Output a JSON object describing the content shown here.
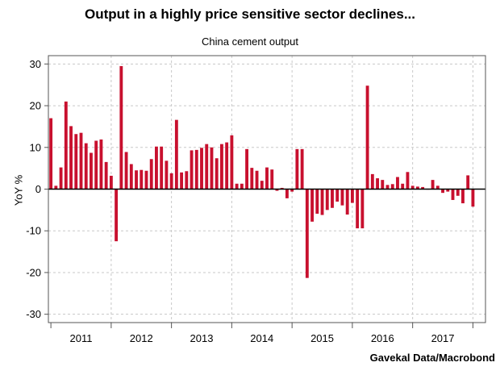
{
  "chart_data": {
    "type": "bar",
    "title": "Output in a highly price sensitive sector declines...",
    "subtitle": "China cement output",
    "ylabel": "YoY %",
    "source": "Gavekal Data/Macrobond",
    "ylim": [
      -32,
      32
    ],
    "yticks": [
      30,
      20,
      10,
      0,
      -10,
      -20,
      -30
    ],
    "grid": true,
    "bar_color": "#c8102e",
    "years": [
      "2011",
      "2012",
      "2013",
      "2014",
      "2015",
      "2016",
      "2017"
    ],
    "x_start": "2011-01",
    "values": [
      17.0,
      0.8,
      5.2,
      21.0,
      15.1,
      13.2,
      13.5,
      11.0,
      8.7,
      11.6,
      11.9,
      6.5,
      3.2,
      -12.5,
      29.5,
      8.9,
      6.0,
      4.5,
      4.6,
      4.4,
      7.2,
      10.2,
      10.2,
      6.8,
      3.8,
      16.6,
      4.0,
      4.3,
      9.3,
      9.4,
      9.9,
      10.8,
      10.0,
      7.4,
      10.8,
      11.2,
      12.9,
      1.3,
      1.3,
      9.6,
      5.1,
      4.4,
      2.0,
      5.2,
      4.7,
      -0.4,
      0.3,
      -2.2,
      -0.6,
      9.6,
      9.6,
      -21.3,
      -7.8,
      -5.9,
      -6.2,
      -5.0,
      -4.5,
      -3.0,
      -3.9,
      -6.1,
      -3.3,
      -9.4,
      -9.4,
      24.8,
      3.6,
      2.6,
      2.2,
      1.0,
      1.2,
      2.9,
      1.3,
      4.1,
      0.8,
      0.6,
      0.5,
      0.0,
      2.2,
      0.8,
      -0.9,
      -0.6,
      -2.6,
      -1.6,
      -3.4,
      3.3,
      -4.2
    ]
  }
}
